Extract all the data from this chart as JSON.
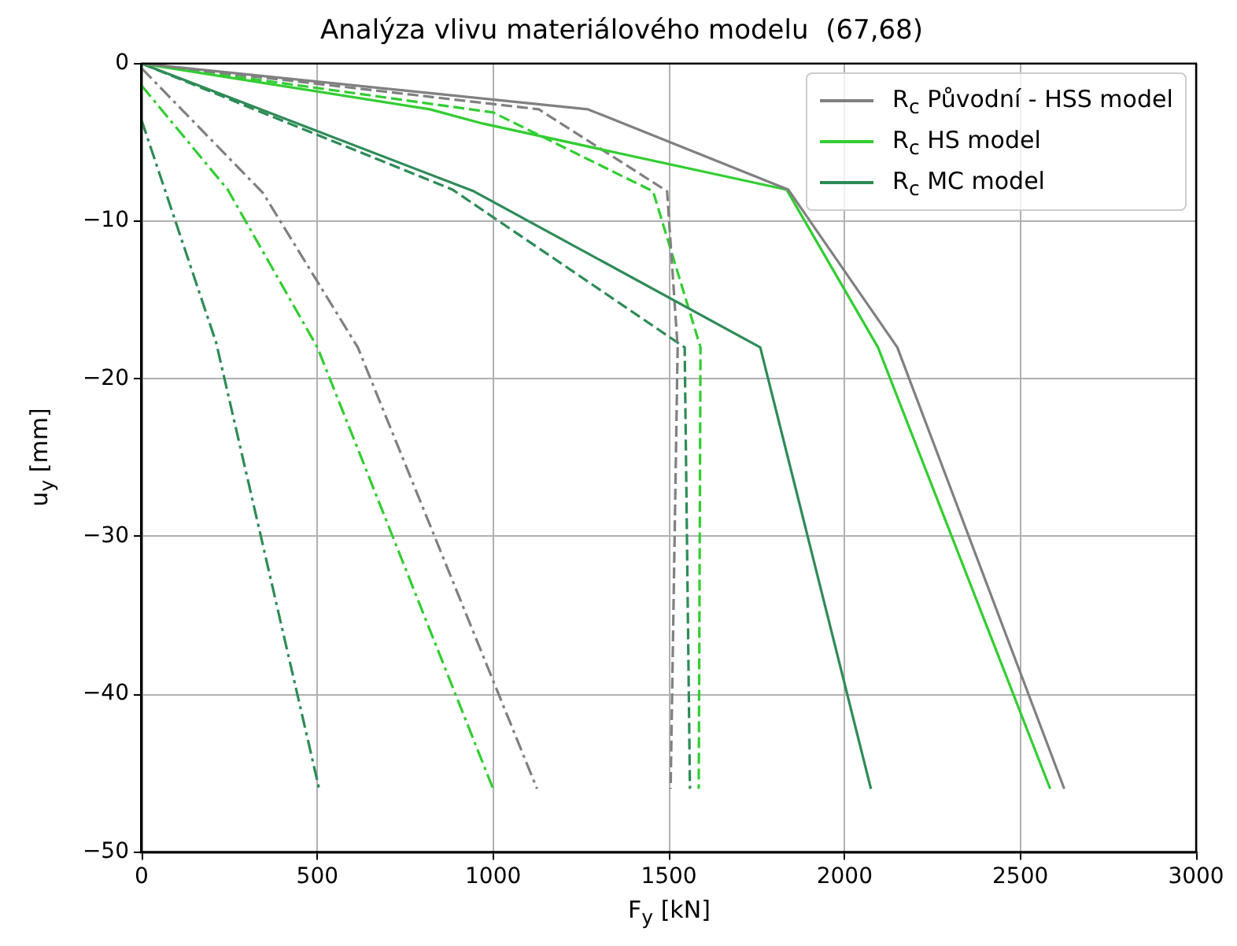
{
  "chart_data": {
    "type": "line",
    "title": "Analýza vlivu materiálového modelu  (67,68)",
    "xlabel": "F$_{y}$ [kN]",
    "ylabel": "u$_{y}$ [mm]",
    "xlim": [
      0,
      3000
    ],
    "xticks": [
      0,
      500,
      1000,
      1500,
      2000,
      2500,
      3000
    ],
    "ylim": [
      -50,
      0
    ],
    "yticks": [
      -50,
      -40,
      -30,
      -20,
      -10,
      0
    ],
    "grid": true,
    "legend": "top right",
    "marker": "none",
    "series": [
      {
        "name": "R$_{c}$ Původní - HSS model",
        "color": "#808080",
        "line_style": "solid",
        "x": [
          0,
          1270,
          1840,
          2150,
          2625
        ],
        "values": [
          0,
          -2.9,
          -8,
          -18,
          -46
        ]
      },
      {
        "name": "R$_{c}$ HS model",
        "color": "#32cd32",
        "line_style": "solid",
        "x": [
          0,
          820,
          970,
          1835,
          2095,
          2585
        ],
        "values": [
          0,
          -2.9,
          -3.8,
          -8,
          -18,
          -46
        ]
      },
      {
        "name": "R$_{c}$ MC model",
        "color": "#2e8b57",
        "line_style": "solid",
        "x": [
          0,
          945,
          1760,
          2075
        ],
        "values": [
          0,
          -8.1,
          -18,
          -46
        ]
      },
      {
        "color": "#808080",
        "line_style": "dashed",
        "x": [
          0,
          1130,
          1495,
          1525,
          1505
        ],
        "values": [
          0,
          -2.9,
          -8.1,
          -18,
          -46
        ]
      },
      {
        "color": "#32cd32",
        "line_style": "dashed",
        "x": [
          0,
          1000,
          1455,
          1590,
          1585
        ],
        "values": [
          0,
          -3.1,
          -8.1,
          -18,
          -46
        ]
      },
      {
        "color": "#2e8b57",
        "line_style": "dashed",
        "x": [
          0,
          885,
          1545,
          1560
        ],
        "values": [
          0,
          -8,
          -18,
          -46
        ]
      },
      {
        "color": "#808080",
        "line_style": "dashdot",
        "x": [
          0,
          345,
          615,
          1125
        ],
        "values": [
          -0.3,
          -8.2,
          -18,
          -46
        ]
      },
      {
        "color": "#32cd32",
        "line_style": "dashdot",
        "x": [
          0,
          245,
          500,
          1000
        ],
        "values": [
          -1.4,
          -8,
          -18,
          -46
        ]
      },
      {
        "color": "#2e8b57",
        "line_style": "dashdot",
        "x": [
          0,
          212,
          505
        ],
        "values": [
          -3.6,
          -17.7,
          -46
        ]
      }
    ]
  }
}
